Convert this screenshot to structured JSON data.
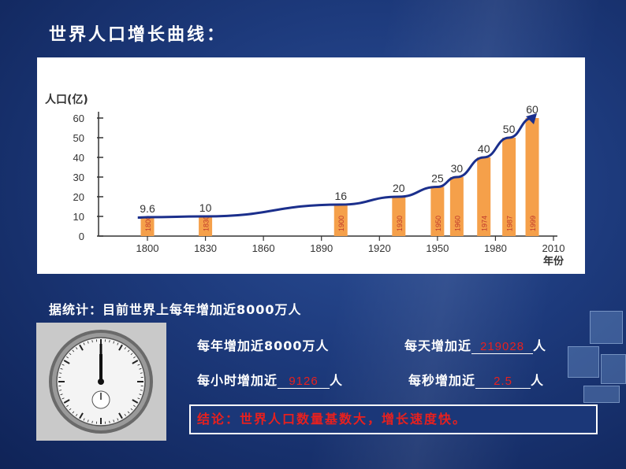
{
  "slide": {
    "title": "世界人口增长曲线：",
    "stat_line": "据统计：目前世界上每年增加近8000万人",
    "row1_a": "每年增加近8000万人",
    "row1_b_prefix": "每天增加近",
    "row1_b_answer": "219028",
    "row1_b_suffix": "人",
    "row2_a_prefix": "每小时增加近",
    "row2_a_answer": "9126",
    "row2_a_suffix": "人",
    "row2_b_prefix": "每秒增加近",
    "row2_b_answer": "2.5",
    "row2_b_suffix": "人",
    "conclusion": "结论：世界人口数量基数大，增长速度快。"
  },
  "colors": {
    "background": "#1d3a7c",
    "bar": "#f5a04a",
    "curve": "#1b2f8c",
    "answer": "#e8201e"
  },
  "chart_data": {
    "type": "bar",
    "ylabel": "人口(亿)",
    "xlabel": "年份",
    "ylim": [
      0,
      60
    ],
    "y_ticks": [
      0,
      10,
      20,
      30,
      40,
      50,
      60
    ],
    "x_ticks": [
      1800,
      1830,
      1860,
      1890,
      1920,
      1950,
      1980,
      2010
    ],
    "bars": [
      {
        "year": 1800,
        "value": 9.6,
        "value_label": "9.6",
        "year_label": "1800"
      },
      {
        "year": 1830,
        "value": 10,
        "value_label": "10",
        "year_label": "1830"
      },
      {
        "year": 1900,
        "value": 16,
        "value_label": "16",
        "year_label": "1900"
      },
      {
        "year": 1930,
        "value": 20,
        "value_label": "20",
        "year_label": "1930"
      },
      {
        "year": 1950,
        "value": 25,
        "value_label": "25",
        "year_label": "1950"
      },
      {
        "year": 1960,
        "value": 30,
        "value_label": "30",
        "year_label": "1960"
      },
      {
        "year": 1974,
        "value": 40,
        "value_label": "40",
        "year_label": "1974"
      },
      {
        "year": 1987,
        "value": 50,
        "value_label": "50",
        "year_label": "1987"
      },
      {
        "year": 1999,
        "value": 60,
        "value_label": "60",
        "year_label": "1999"
      }
    ],
    "curve": true
  }
}
